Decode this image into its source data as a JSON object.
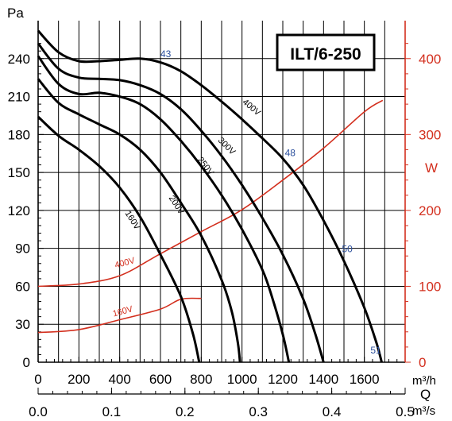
{
  "chart_data": {
    "type": "line",
    "title": "ILT/6-250",
    "x_axis": {
      "primary": {
        "unit": "m³/h",
        "range": [
          0,
          1800
        ],
        "ticks": [
          0,
          200,
          400,
          600,
          800,
          1000,
          1200,
          1400,
          1600
        ]
      },
      "symbol": "Q",
      "secondary": {
        "unit": "m³/s",
        "ticks": [
          "0.0",
          "0.1",
          "0.2",
          "0.3",
          "0.4",
          "0.5"
        ]
      }
    },
    "y_axis_left": {
      "unit": "Pa",
      "range": [
        0,
        270
      ],
      "ticks": [
        0,
        30,
        60,
        90,
        120,
        150,
        180,
        210,
        240
      ]
    },
    "y_axis_right": {
      "unit": "W",
      "range": [
        0,
        450
      ],
      "ticks": [
        0,
        100,
        200,
        300,
        400
      ],
      "color": "#d32f1e"
    },
    "grid": true,
    "pressure_series": [
      {
        "name": "400V",
        "color": "#000000",
        "points": [
          [
            0,
            262
          ],
          [
            100,
            245
          ],
          [
            200,
            238
          ],
          [
            300,
            238
          ],
          [
            400,
            239
          ],
          [
            500,
            240
          ],
          [
            600,
            237
          ],
          [
            700,
            230
          ],
          [
            800,
            219
          ],
          [
            900,
            206
          ],
          [
            1000,
            192
          ],
          [
            1100,
            177
          ],
          [
            1200,
            161
          ],
          [
            1300,
            140
          ],
          [
            1400,
            112
          ],
          [
            1500,
            80
          ],
          [
            1600,
            43
          ],
          [
            1660,
            15
          ],
          [
            1685,
            0
          ]
        ]
      },
      {
        "name": "300V",
        "color": "#000000",
        "points": [
          [
            0,
            252
          ],
          [
            100,
            232
          ],
          [
            200,
            225
          ],
          [
            300,
            224
          ],
          [
            400,
            223
          ],
          [
            500,
            219
          ],
          [
            600,
            212
          ],
          [
            700,
            200
          ],
          [
            800,
            183
          ],
          [
            900,
            163
          ],
          [
            1000,
            140
          ],
          [
            1100,
            114
          ],
          [
            1200,
            85
          ],
          [
            1300,
            50
          ],
          [
            1360,
            22
          ],
          [
            1400,
            0
          ]
        ]
      },
      {
        "name": "250V",
        "color": "#000000",
        "points": [
          [
            0,
            242
          ],
          [
            100,
            220
          ],
          [
            200,
            212
          ],
          [
            300,
            213
          ],
          [
            400,
            210
          ],
          [
            500,
            204
          ],
          [
            600,
            192
          ],
          [
            700,
            175
          ],
          [
            800,
            155
          ],
          [
            900,
            132
          ],
          [
            1000,
            105
          ],
          [
            1100,
            73
          ],
          [
            1150,
            50
          ],
          [
            1200,
            22
          ],
          [
            1230,
            0
          ]
        ]
      },
      {
        "name": "200V",
        "color": "#000000",
        "points": [
          [
            0,
            224
          ],
          [
            100,
            205
          ],
          [
            200,
            196
          ],
          [
            300,
            188
          ],
          [
            400,
            180
          ],
          [
            500,
            168
          ],
          [
            600,
            150
          ],
          [
            700,
            126
          ],
          [
            800,
            100
          ],
          [
            900,
            65
          ],
          [
            950,
            40
          ],
          [
            980,
            15
          ],
          [
            990,
            0
          ]
        ]
      },
      {
        "name": "160V",
        "color": "#000000",
        "points": [
          [
            0,
            194
          ],
          [
            100,
            179
          ],
          [
            200,
            168
          ],
          [
            300,
            155
          ],
          [
            400,
            138
          ],
          [
            500,
            115
          ],
          [
            600,
            85
          ],
          [
            700,
            52
          ],
          [
            760,
            22
          ],
          [
            790,
            0
          ]
        ]
      }
    ],
    "power_series": [
      {
        "name": "400V",
        "color": "#d32f1e",
        "points": [
          [
            0,
            100
          ],
          [
            200,
            103
          ],
          [
            400,
            114
          ],
          [
            600,
            143
          ],
          [
            800,
            172
          ],
          [
            1000,
            201
          ],
          [
            1200,
            240
          ],
          [
            1400,
            282
          ],
          [
            1600,
            330
          ],
          [
            1690,
            345
          ]
        ]
      },
      {
        "name": "160V",
        "color": "#d32f1e",
        "points": [
          [
            0,
            39
          ],
          [
            200,
            43
          ],
          [
            400,
            56
          ],
          [
            600,
            70
          ],
          [
            700,
            83
          ],
          [
            800,
            84
          ]
        ]
      }
    ],
    "annotations": [
      {
        "text": "43",
        "x": 600,
        "y": 241
      },
      {
        "text": "48",
        "x": 1210,
        "y": 163
      },
      {
        "text": "50",
        "x": 1490,
        "y": 87
      },
      {
        "text": "51",
        "x": 1630,
        "y": 7
      }
    ]
  }
}
